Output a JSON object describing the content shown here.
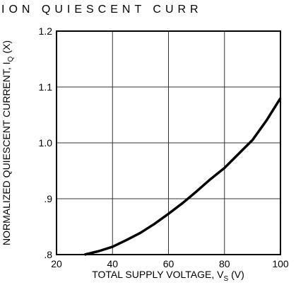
{
  "chart_data": {
    "type": "line",
    "title": "ION QUIESCENT CURR",
    "xlabel": {
      "text": "TOTAL SUPPLY VOLTAGE, V",
      "sub": "S",
      "unit": "(V)"
    },
    "ylabel": {
      "text": "NORMALIZED QUIESCENT CURRENT, I",
      "sub": "Q",
      "unit": "(X)"
    },
    "x": [
      30,
      35,
      40,
      45,
      50,
      55,
      60,
      65,
      70,
      75,
      80,
      85,
      90,
      95,
      100
    ],
    "series": [
      {
        "color": "#000000",
        "values": [
          0.8,
          0.806,
          0.814,
          0.826,
          0.839,
          0.855,
          0.873,
          0.892,
          0.913,
          0.935,
          0.955,
          0.98,
          1.005,
          1.04,
          1.08
        ]
      }
    ],
    "xlim": [
      20,
      100
    ],
    "ylim": [
      0.8,
      1.2
    ],
    "xticks": [
      20,
      40,
      60,
      80,
      100
    ],
    "yticks": [
      {
        "value": 0.8,
        "label": ".8"
      },
      {
        "value": 0.9,
        "label": ".9"
      },
      {
        "value": 1.0,
        "label": "1.0"
      },
      1.1,
      1.2
    ],
    "grid": true
  }
}
